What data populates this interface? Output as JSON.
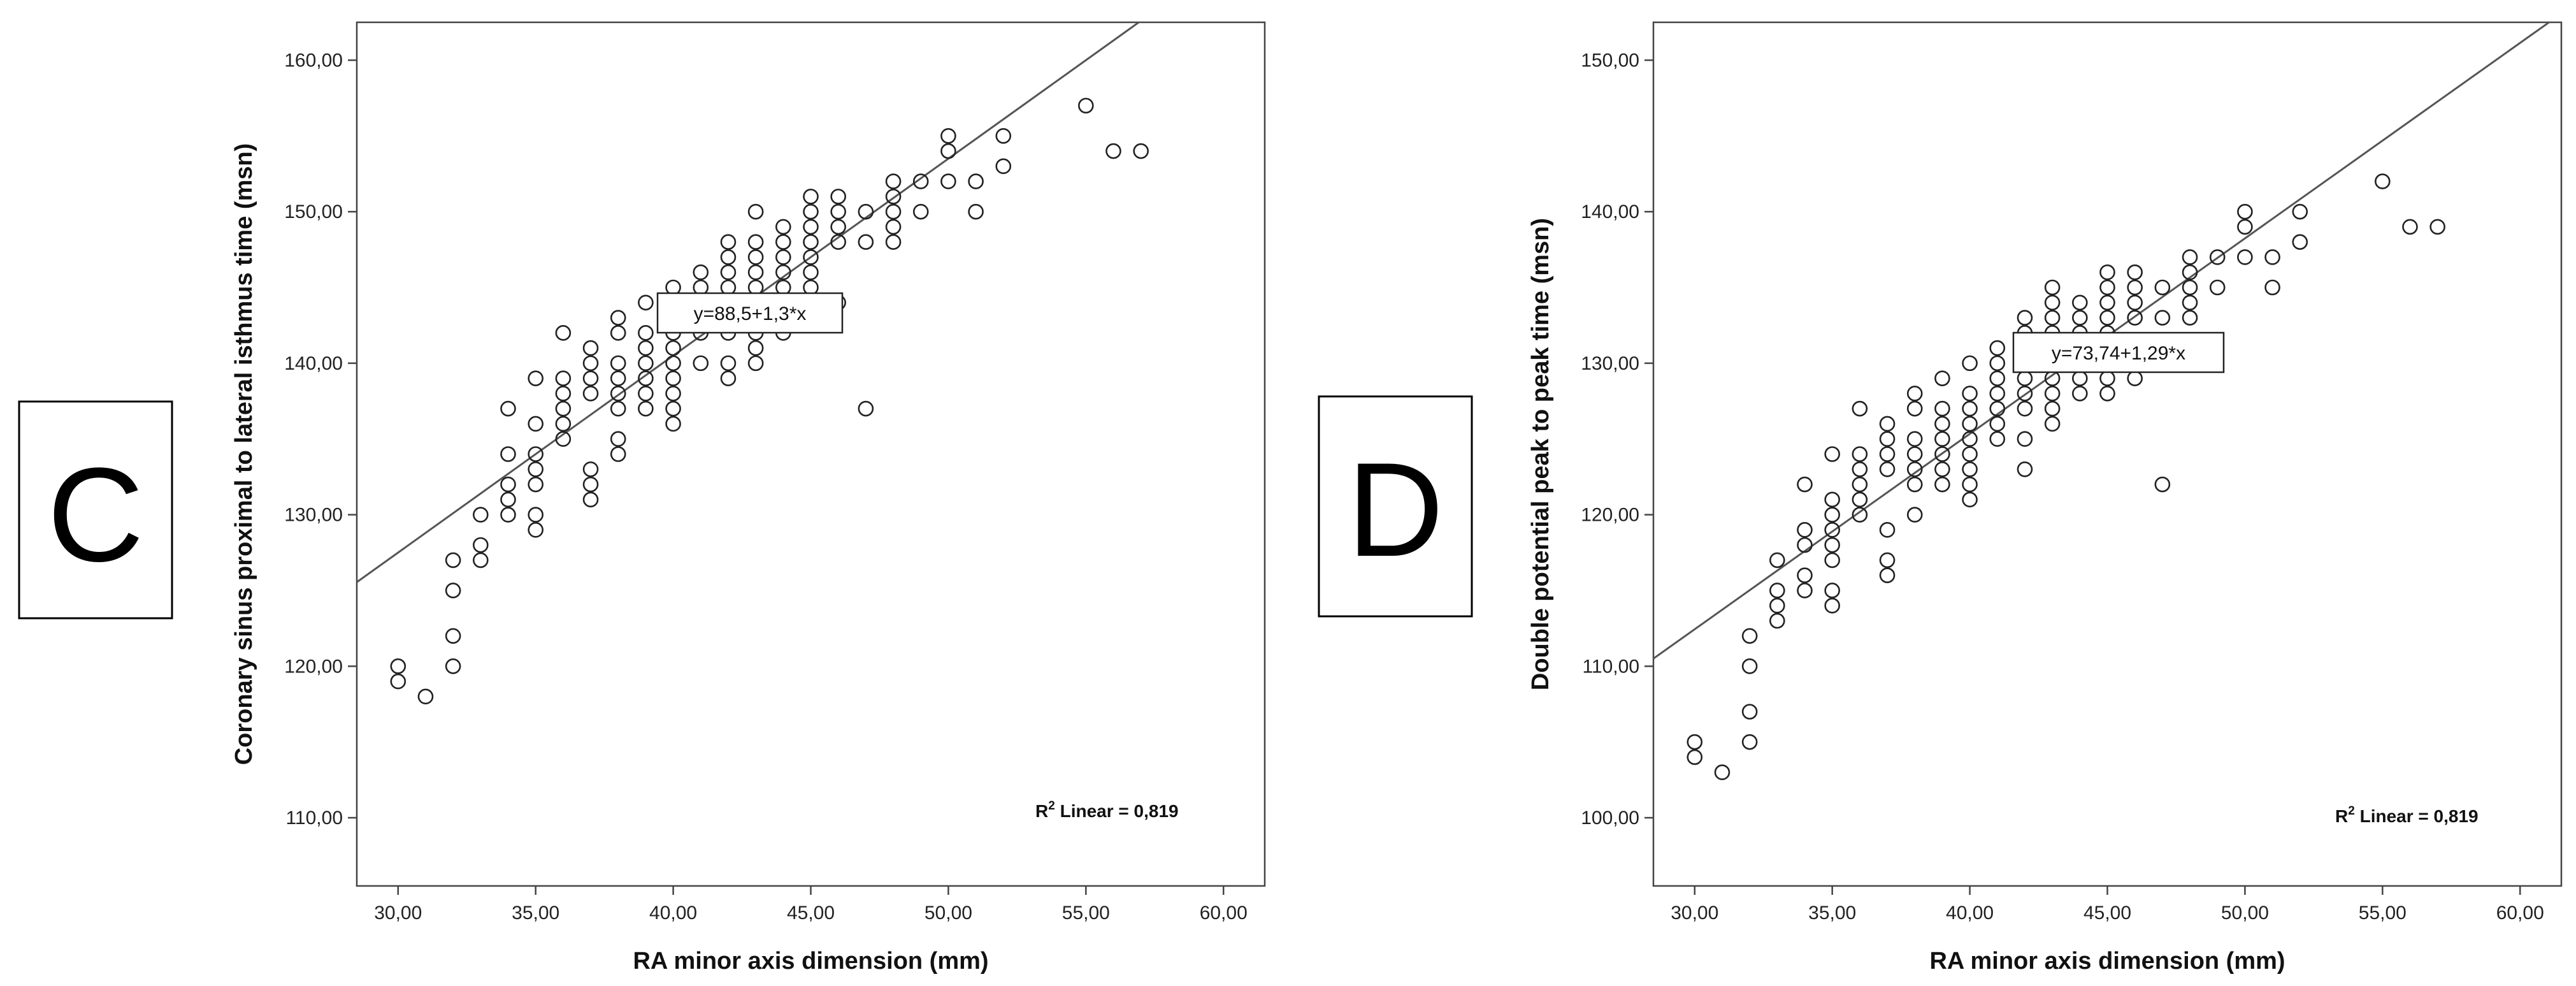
{
  "chart_data": [
    {
      "type": "scatter",
      "panel_label": "C",
      "xlabel": "RA minor axis dimension (mm)",
      "ylabel": "Coronary sinus proximal to lateral isthmus time (msn)",
      "xlim": [
        28.5,
        61.5
      ],
      "ylim": [
        105.5,
        162.5
      ],
      "x_ticks": [
        30,
        35,
        40,
        45,
        50,
        55,
        60
      ],
      "x_tick_labels": [
        "30,00",
        "35,00",
        "40,00",
        "45,00",
        "50,00",
        "55,00",
        "60,00"
      ],
      "y_ticks": [
        110,
        120,
        130,
        140,
        150,
        160
      ],
      "y_tick_labels": [
        "110,00",
        "120,00",
        "130,00",
        "140,00",
        "150,00",
        "160,00"
      ],
      "grid": false,
      "fit_line": {
        "intercept": 88.5,
        "slope": 1.3
      },
      "equation_label": "y=88,5+1,3*x",
      "r2_label": {
        "prefix": "R",
        "sup": "2",
        "text": " Linear = 0,819"
      },
      "points": [
        [
          30,
          120
        ],
        [
          30,
          119
        ],
        [
          31,
          118
        ],
        [
          32,
          127
        ],
        [
          32,
          125
        ],
        [
          32,
          122
        ],
        [
          32,
          120
        ],
        [
          33,
          130
        ],
        [
          33,
          128
        ],
        [
          33,
          127
        ],
        [
          34,
          137
        ],
        [
          34,
          134
        ],
        [
          34,
          132
        ],
        [
          34,
          131
        ],
        [
          34,
          130
        ],
        [
          35,
          139
        ],
        [
          35,
          136
        ],
        [
          35,
          134
        ],
        [
          35,
          133
        ],
        [
          35,
          132
        ],
        [
          35,
          130
        ],
        [
          35,
          129
        ],
        [
          36,
          142
        ],
        [
          36,
          139
        ],
        [
          36,
          138
        ],
        [
          36,
          137
        ],
        [
          36,
          136
        ],
        [
          36,
          135
        ],
        [
          37,
          141
        ],
        [
          37,
          140
        ],
        [
          37,
          139
        ],
        [
          37,
          138
        ],
        [
          37,
          133
        ],
        [
          37,
          132
        ],
        [
          37,
          131
        ],
        [
          38,
          143
        ],
        [
          38,
          142
        ],
        [
          38,
          140
        ],
        [
          38,
          139
        ],
        [
          38,
          138
        ],
        [
          38,
          137
        ],
        [
          38,
          135
        ],
        [
          38,
          134
        ],
        [
          39,
          144
        ],
        [
          39,
          142
        ],
        [
          39,
          141
        ],
        [
          39,
          140
        ],
        [
          39,
          139
        ],
        [
          39,
          138
        ],
        [
          39,
          137
        ],
        [
          40,
          145
        ],
        [
          40,
          143
        ],
        [
          40,
          142
        ],
        [
          40,
          141
        ],
        [
          40,
          140
        ],
        [
          40,
          139
        ],
        [
          40,
          138
        ],
        [
          40,
          137
        ],
        [
          40,
          136
        ],
        [
          41,
          146
        ],
        [
          41,
          145
        ],
        [
          41,
          144
        ],
        [
          41,
          143
        ],
        [
          41,
          142
        ],
        [
          41,
          140
        ],
        [
          42,
          148
        ],
        [
          42,
          147
        ],
        [
          42,
          146
        ],
        [
          42,
          145
        ],
        [
          42,
          144
        ],
        [
          42,
          143
        ],
        [
          42,
          142
        ],
        [
          42,
          140
        ],
        [
          42,
          139
        ],
        [
          43,
          150
        ],
        [
          43,
          148
        ],
        [
          43,
          147
        ],
        [
          43,
          146
        ],
        [
          43,
          145
        ],
        [
          43,
          144
        ],
        [
          43,
          143
        ],
        [
          43,
          142
        ],
        [
          43,
          141
        ],
        [
          43,
          140
        ],
        [
          44,
          149
        ],
        [
          44,
          148
        ],
        [
          44,
          147
        ],
        [
          44,
          146
        ],
        [
          44,
          145
        ],
        [
          44,
          144
        ],
        [
          44,
          142
        ],
        [
          45,
          151
        ],
        [
          45,
          150
        ],
        [
          45,
          149
        ],
        [
          45,
          148
        ],
        [
          45,
          147
        ],
        [
          45,
          146
        ],
        [
          45,
          145
        ],
        [
          45,
          144
        ],
        [
          45,
          143
        ],
        [
          46,
          151
        ],
        [
          46,
          150
        ],
        [
          46,
          149
        ],
        [
          46,
          148
        ],
        [
          46,
          144
        ],
        [
          47,
          150
        ],
        [
          47,
          148
        ],
        [
          47,
          137
        ],
        [
          48,
          152
        ],
        [
          48,
          151
        ],
        [
          48,
          150
        ],
        [
          48,
          149
        ],
        [
          48,
          148
        ],
        [
          49,
          152
        ],
        [
          49,
          150
        ],
        [
          50,
          155
        ],
        [
          50,
          154
        ],
        [
          50,
          152
        ],
        [
          51,
          152
        ],
        [
          51,
          150
        ],
        [
          52,
          155
        ],
        [
          52,
          153
        ],
        [
          55,
          157
        ],
        [
          56,
          154
        ],
        [
          57,
          154
        ]
      ]
    },
    {
      "type": "scatter",
      "panel_label": "D",
      "xlabel": "RA minor axis dimension (mm)",
      "ylabel": "Double potential peak to peak time (msn)",
      "xlim": [
        28.5,
        61.5
      ],
      "ylim": [
        95.5,
        152.5
      ],
      "x_ticks": [
        30,
        35,
        40,
        45,
        50,
        55,
        60
      ],
      "x_tick_labels": [
        "30,00",
        "35,00",
        "40,00",
        "45,00",
        "50,00",
        "55,00",
        "60,00"
      ],
      "y_ticks": [
        100,
        110,
        120,
        130,
        140,
        150
      ],
      "y_tick_labels": [
        "100,00",
        "110,00",
        "120,00",
        "130,00",
        "140,00",
        "150,00"
      ],
      "grid": false,
      "fit_line": {
        "intercept": 73.74,
        "slope": 1.29
      },
      "equation_label": "y=73,74+1,29*x",
      "r2_label": {
        "prefix": "R",
        "sup": "2",
        "text": " Linear = 0,819"
      },
      "points": [
        [
          30,
          105
        ],
        [
          30,
          104
        ],
        [
          31,
          103
        ],
        [
          32,
          112
        ],
        [
          32,
          110
        ],
        [
          32,
          107
        ],
        [
          32,
          105
        ],
        [
          33,
          117
        ],
        [
          33,
          115
        ],
        [
          33,
          114
        ],
        [
          33,
          113
        ],
        [
          34,
          122
        ],
        [
          34,
          119
        ],
        [
          34,
          118
        ],
        [
          34,
          116
        ],
        [
          34,
          115
        ],
        [
          35,
          124
        ],
        [
          35,
          121
        ],
        [
          35,
          120
        ],
        [
          35,
          119
        ],
        [
          35,
          118
        ],
        [
          35,
          117
        ],
        [
          35,
          115
        ],
        [
          35,
          114
        ],
        [
          36,
          127
        ],
        [
          36,
          124
        ],
        [
          36,
          123
        ],
        [
          36,
          122
        ],
        [
          36,
          121
        ],
        [
          36,
          120
        ],
        [
          37,
          126
        ],
        [
          37,
          125
        ],
        [
          37,
          124
        ],
        [
          37,
          123
        ],
        [
          37,
          119
        ],
        [
          37,
          117
        ],
        [
          37,
          116
        ],
        [
          38,
          128
        ],
        [
          38,
          127
        ],
        [
          38,
          125
        ],
        [
          38,
          124
        ],
        [
          38,
          123
        ],
        [
          38,
          122
        ],
        [
          38,
          120
        ],
        [
          39,
          129
        ],
        [
          39,
          127
        ],
        [
          39,
          126
        ],
        [
          39,
          125
        ],
        [
          39,
          124
        ],
        [
          39,
          123
        ],
        [
          39,
          122
        ],
        [
          40,
          130
        ],
        [
          40,
          128
        ],
        [
          40,
          127
        ],
        [
          40,
          126
        ],
        [
          40,
          125
        ],
        [
          40,
          124
        ],
        [
          40,
          123
        ],
        [
          40,
          122
        ],
        [
          40,
          121
        ],
        [
          41,
          131
        ],
        [
          41,
          130
        ],
        [
          41,
          129
        ],
        [
          41,
          128
        ],
        [
          41,
          127
        ],
        [
          41,
          126
        ],
        [
          41,
          125
        ],
        [
          42,
          133
        ],
        [
          42,
          132
        ],
        [
          42,
          131
        ],
        [
          42,
          130
        ],
        [
          42,
          129
        ],
        [
          42,
          128
        ],
        [
          42,
          127
        ],
        [
          42,
          125
        ],
        [
          42,
          123
        ],
        [
          43,
          135
        ],
        [
          43,
          134
        ],
        [
          43,
          133
        ],
        [
          43,
          132
        ],
        [
          43,
          131
        ],
        [
          43,
          130
        ],
        [
          43,
          129
        ],
        [
          43,
          128
        ],
        [
          43,
          127
        ],
        [
          43,
          126
        ],
        [
          44,
          134
        ],
        [
          44,
          133
        ],
        [
          44,
          132
        ],
        [
          44,
          131
        ],
        [
          44,
          130
        ],
        [
          44,
          129
        ],
        [
          44,
          128
        ],
        [
          45,
          136
        ],
        [
          45,
          135
        ],
        [
          45,
          134
        ],
        [
          45,
          133
        ],
        [
          45,
          132
        ],
        [
          45,
          131
        ],
        [
          45,
          130
        ],
        [
          45,
          129
        ],
        [
          45,
          128
        ],
        [
          46,
          136
        ],
        [
          46,
          135
        ],
        [
          46,
          134
        ],
        [
          46,
          133
        ],
        [
          46,
          129
        ],
        [
          47,
          135
        ],
        [
          47,
          133
        ],
        [
          47,
          122
        ],
        [
          48,
          137
        ],
        [
          48,
          136
        ],
        [
          48,
          135
        ],
        [
          48,
          134
        ],
        [
          48,
          133
        ],
        [
          49,
          137
        ],
        [
          49,
          135
        ],
        [
          50,
          140
        ],
        [
          50,
          139
        ],
        [
          50,
          137
        ],
        [
          51,
          137
        ],
        [
          51,
          135
        ],
        [
          52,
          140
        ],
        [
          52,
          138
        ],
        [
          55,
          142
        ],
        [
          56,
          139
        ],
        [
          57,
          139
        ]
      ]
    }
  ]
}
